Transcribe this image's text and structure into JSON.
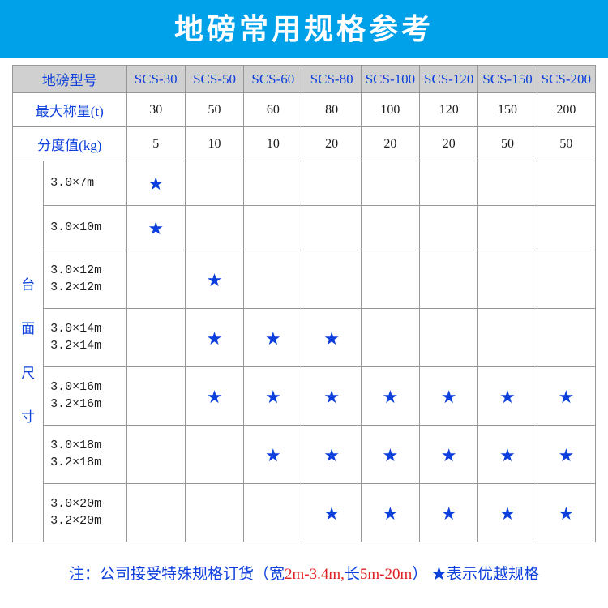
{
  "colors": {
    "title_bg": "#00a1e9",
    "title_text": "#ffffff",
    "header_text": "#0c3fdc",
    "header_bg": "#d0d0d0",
    "body_text": "#1a1a1a",
    "star": "#0c3fdc",
    "footer_red": "#e02020",
    "border": "#979797"
  },
  "fonts": {
    "title_size": 36,
    "header_size": 17,
    "cell_size": 16,
    "size_label_size": 15
  },
  "title": "地磅常用规格参考",
  "header": {
    "model": "地磅型号",
    "models": [
      "SCS-30",
      "SCS-50",
      "SCS-60",
      "SCS-80",
      "SCS-100",
      "SCS-120",
      "SCS-150",
      "SCS-200"
    ]
  },
  "rows": {
    "max_label": "最大称量(t)",
    "max_values": [
      "30",
      "50",
      "60",
      "80",
      "100",
      "120",
      "150",
      "200"
    ],
    "div_label": "分度值(kg)",
    "div_values": [
      "5",
      "10",
      "10",
      "20",
      "20",
      "20",
      "50",
      "50"
    ]
  },
  "vheader": {
    "c0": "台",
    "c1": "面",
    "c2": "尺",
    "c3": "寸"
  },
  "sizes": [
    {
      "label_a": "3.0×7m",
      "label_b": "",
      "stars": [
        1,
        0,
        0,
        0,
        0,
        0,
        0,
        0
      ]
    },
    {
      "label_a": "3.0×10m",
      "label_b": "",
      "stars": [
        1,
        0,
        0,
        0,
        0,
        0,
        0,
        0
      ]
    },
    {
      "label_a": "3.0×12m",
      "label_b": "3.2×12m",
      "stars": [
        0,
        1,
        0,
        0,
        0,
        0,
        0,
        0
      ]
    },
    {
      "label_a": "3.0×14m",
      "label_b": "3.2×14m",
      "stars": [
        0,
        1,
        1,
        1,
        0,
        0,
        0,
        0
      ]
    },
    {
      "label_a": "3.0×16m",
      "label_b": "3.2×16m",
      "stars": [
        0,
        1,
        1,
        1,
        1,
        1,
        1,
        1
      ]
    },
    {
      "label_a": "3.0×18m",
      "label_b": "3.2×18m",
      "stars": [
        0,
        0,
        1,
        1,
        1,
        1,
        1,
        1
      ]
    },
    {
      "label_a": "3.0×20m",
      "label_b": "3.2×20m",
      "stars": [
        0,
        0,
        0,
        1,
        1,
        1,
        1,
        1
      ]
    }
  ],
  "star_glyph": "★",
  "footer": {
    "prefix": "注：公司接受特殊规格订货（宽",
    "span1": "2m-3.4m,",
    "mid": "长",
    "span2": "5m-20m",
    "suffix": "）  ★表示优越规格"
  }
}
